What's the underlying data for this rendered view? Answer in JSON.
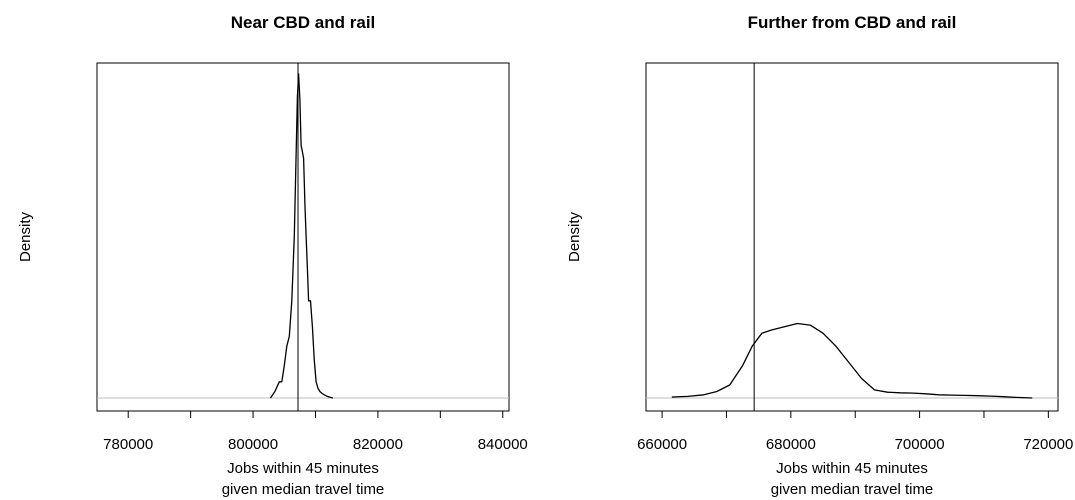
{
  "chart_data": [
    {
      "type": "line",
      "title": "Near CBD and rail",
      "xlabel": [
        "Jobs within 45 minutes",
        "given median travel time"
      ],
      "ylabel": "Density",
      "xlim": [
        775000,
        841000
      ],
      "ylim": [
        0,
        1
      ],
      "xticks": [
        780000,
        790000,
        800000,
        810000,
        820000,
        830000,
        840000
      ],
      "xtick_labels": [
        "780000",
        "",
        "800000",
        "",
        "820000",
        "",
        "840000"
      ],
      "reference_line_x": 807200,
      "grid": false,
      "series": [
        {
          "x": [
            802800,
            803500,
            804200,
            804600,
            805000,
            805400,
            805800,
            806200,
            806600,
            806900,
            807100,
            807300,
            807500,
            807700,
            807900,
            808100,
            808300,
            808500,
            808700,
            808900,
            809200,
            809500,
            809800,
            810100,
            810400,
            810700,
            811000,
            811400,
            811800,
            812200,
            812800
          ],
          "y": [
            0.0,
            0.02,
            0.05,
            0.05,
            0.1,
            0.16,
            0.19,
            0.3,
            0.5,
            0.75,
            0.93,
            1.0,
            0.92,
            0.78,
            0.76,
            0.74,
            0.6,
            0.5,
            0.4,
            0.3,
            0.3,
            0.22,
            0.12,
            0.05,
            0.03,
            0.02,
            0.015,
            0.01,
            0.006,
            0.003,
            0.0
          ]
        }
      ]
    },
    {
      "type": "line",
      "title": "Further from CBD and rail",
      "xlabel": [
        "Jobs within 45 minutes",
        "given median travel time"
      ],
      "ylabel": "Density",
      "xlim": [
        657500,
        721500
      ],
      "ylim": [
        0,
        1
      ],
      "xticks": [
        660000,
        670000,
        680000,
        690000,
        700000,
        710000,
        720000
      ],
      "xtick_labels": [
        "660000",
        "",
        "680000",
        "",
        "700000",
        "",
        "720000"
      ],
      "reference_line_x": 674300,
      "grid": false,
      "series": [
        {
          "x": [
            661500,
            664000,
            666500,
            668500,
            670500,
            672500,
            674000,
            675500,
            677000,
            679000,
            681000,
            683000,
            685000,
            687000,
            689000,
            691000,
            693000,
            695000,
            697000,
            699000,
            701000,
            703000,
            705000,
            707000,
            709000,
            711000,
            713000,
            715000,
            717500
          ],
          "y": [
            0.003,
            0.005,
            0.01,
            0.02,
            0.04,
            0.1,
            0.16,
            0.2,
            0.21,
            0.22,
            0.23,
            0.225,
            0.2,
            0.16,
            0.11,
            0.06,
            0.025,
            0.018,
            0.016,
            0.015,
            0.013,
            0.01,
            0.009,
            0.008,
            0.007,
            0.006,
            0.004,
            0.002,
            0.0
          ]
        }
      ]
    }
  ]
}
